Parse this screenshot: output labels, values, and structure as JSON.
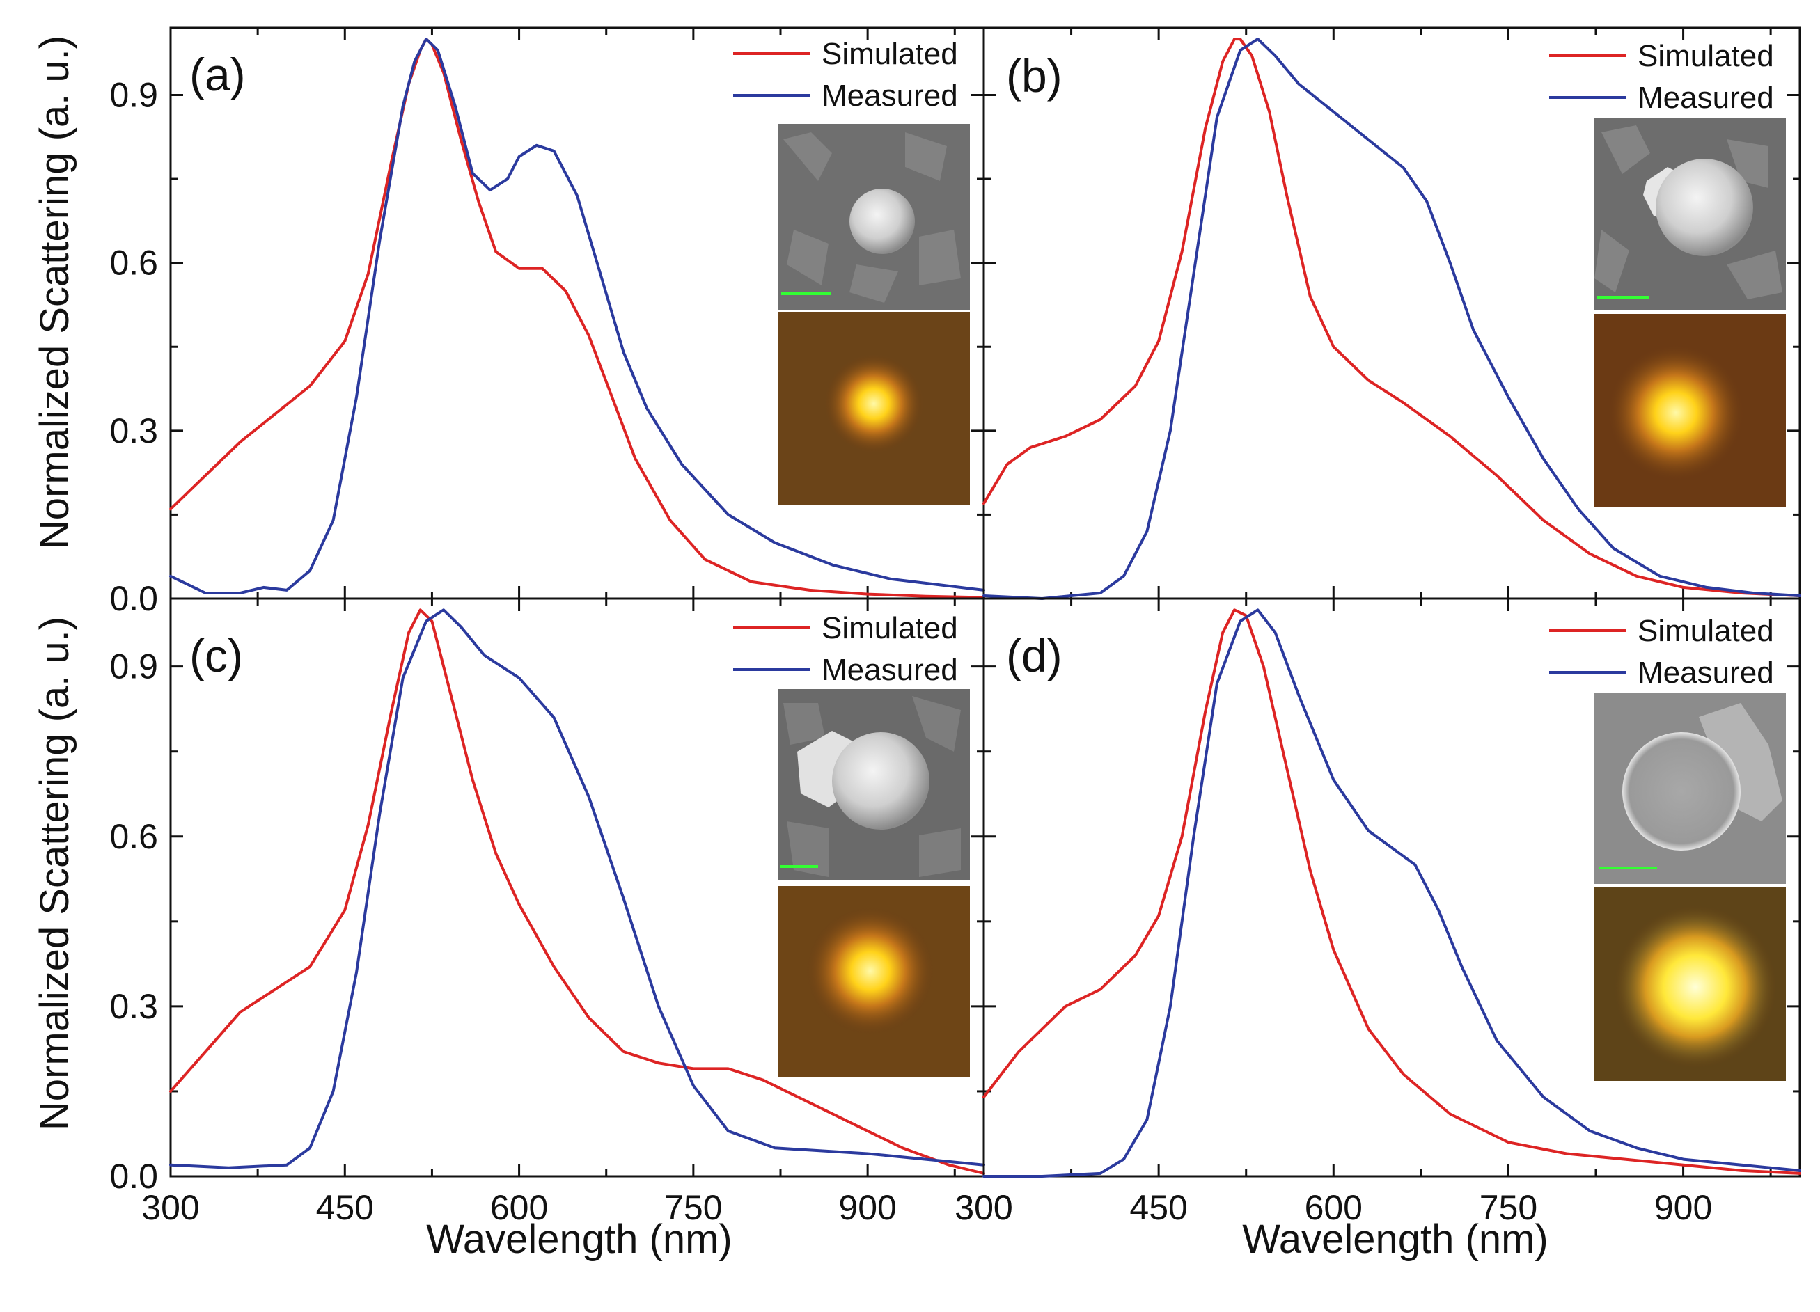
{
  "figure": {
    "ylabel": "Normalized Scattering (a. u.)",
    "xlabel": "Wavelength (nm)",
    "legend": {
      "simulated": "Simulated",
      "measured": "Measured"
    },
    "colors": {
      "simulated": "#dd2424",
      "measured": "#2b3a9e",
      "axis": "#111111"
    }
  },
  "chart_data": [
    {
      "type": "line",
      "panel": "(a)",
      "xlim": [
        300,
        1000
      ],
      "ylim": [
        0,
        1.02
      ],
      "xticks": [
        300,
        450,
        600,
        750,
        900
      ],
      "yticks": [
        0.0,
        0.3,
        0.6,
        0.9
      ],
      "ytick_labels": [
        "0.0",
        "0.3",
        "0.6",
        "0.9"
      ],
      "xlabel": "",
      "ylabel": "Normalized Scattering (a. u.)",
      "series": [
        {
          "name": "Simulated",
          "color": "#dd2424",
          "x": [
            300,
            330,
            360,
            390,
            420,
            450,
            470,
            490,
            505,
            515,
            520,
            525,
            535,
            550,
            565,
            580,
            600,
            620,
            640,
            660,
            680,
            700,
            730,
            760,
            800,
            850,
            900,
            950,
            1000
          ],
          "y": [
            0.16,
            0.22,
            0.28,
            0.33,
            0.38,
            0.46,
            0.58,
            0.78,
            0.92,
            0.98,
            1.0,
            0.99,
            0.94,
            0.82,
            0.71,
            0.62,
            0.59,
            0.59,
            0.55,
            0.47,
            0.36,
            0.25,
            0.14,
            0.07,
            0.03,
            0.015,
            0.008,
            0.004,
            0.002
          ]
        },
        {
          "name": "Measured",
          "color": "#2b3a9e",
          "x": [
            300,
            330,
            360,
            380,
            400,
            420,
            440,
            460,
            480,
            500,
            510,
            520,
            530,
            545,
            560,
            575,
            590,
            600,
            615,
            630,
            650,
            670,
            690,
            710,
            740,
            780,
            820,
            870,
            920,
            960,
            1000
          ],
          "y": [
            0.04,
            0.01,
            0.01,
            0.02,
            0.015,
            0.05,
            0.14,
            0.36,
            0.64,
            0.88,
            0.96,
            1.0,
            0.98,
            0.88,
            0.76,
            0.73,
            0.75,
            0.79,
            0.81,
            0.8,
            0.72,
            0.58,
            0.44,
            0.34,
            0.24,
            0.15,
            0.1,
            0.06,
            0.035,
            0.025,
            0.015
          ]
        }
      ]
    },
    {
      "type": "line",
      "panel": "(b)",
      "xlim": [
        300,
        1000
      ],
      "ylim": [
        0,
        1.02
      ],
      "xticks": [
        300,
        450,
        600,
        750,
        900
      ],
      "yticks": [
        0.0,
        0.3,
        0.6,
        0.9
      ],
      "xlabel": "",
      "ylabel": "",
      "series": [
        {
          "name": "Simulated",
          "color": "#dd2424",
          "x": [
            300,
            320,
            340,
            370,
            400,
            430,
            450,
            470,
            490,
            505,
            515,
            520,
            530,
            545,
            560,
            580,
            600,
            630,
            660,
            700,
            740,
            780,
            820,
            860,
            900,
            950,
            1000
          ],
          "y": [
            0.17,
            0.24,
            0.27,
            0.29,
            0.32,
            0.38,
            0.46,
            0.62,
            0.84,
            0.96,
            1.0,
            1.0,
            0.97,
            0.87,
            0.72,
            0.54,
            0.45,
            0.39,
            0.35,
            0.29,
            0.22,
            0.14,
            0.08,
            0.04,
            0.02,
            0.01,
            0.005
          ]
        },
        {
          "name": "Measured",
          "color": "#2b3a9e",
          "x": [
            300,
            350,
            400,
            420,
            440,
            460,
            480,
            500,
            520,
            535,
            550,
            570,
            600,
            630,
            660,
            680,
            700,
            720,
            750,
            780,
            810,
            840,
            880,
            920,
            960,
            1000
          ],
          "y": [
            0.005,
            0.0,
            0.01,
            0.04,
            0.12,
            0.3,
            0.58,
            0.86,
            0.98,
            1.0,
            0.97,
            0.92,
            0.87,
            0.82,
            0.77,
            0.71,
            0.6,
            0.48,
            0.36,
            0.25,
            0.16,
            0.09,
            0.04,
            0.02,
            0.01,
            0.005
          ]
        }
      ]
    },
    {
      "type": "line",
      "panel": "(c)",
      "xlim": [
        300,
        1000
      ],
      "ylim": [
        0,
        1.02
      ],
      "xticks": [
        300,
        450,
        600,
        750,
        900
      ],
      "yticks": [
        0.0,
        0.3,
        0.6,
        0.9
      ],
      "xlabel": "Wavelength (nm)",
      "ylabel": "Normalized Scattering (a. u.)",
      "series": [
        {
          "name": "Simulated",
          "color": "#dd2424",
          "x": [
            300,
            330,
            360,
            390,
            420,
            450,
            470,
            490,
            505,
            515,
            525,
            540,
            560,
            580,
            600,
            630,
            660,
            690,
            720,
            750,
            780,
            810,
            850,
            890,
            930,
            970,
            1000
          ],
          "y": [
            0.15,
            0.22,
            0.29,
            0.33,
            0.37,
            0.47,
            0.62,
            0.82,
            0.96,
            1.0,
            0.98,
            0.86,
            0.7,
            0.57,
            0.48,
            0.37,
            0.28,
            0.22,
            0.2,
            0.19,
            0.19,
            0.17,
            0.13,
            0.09,
            0.05,
            0.02,
            0.005
          ]
        },
        {
          "name": "Measured",
          "color": "#2b3a9e",
          "x": [
            300,
            350,
            400,
            420,
            440,
            460,
            480,
            500,
            520,
            535,
            550,
            570,
            600,
            630,
            660,
            690,
            720,
            750,
            780,
            820,
            860,
            900,
            950,
            1000
          ],
          "y": [
            0.02,
            0.015,
            0.02,
            0.05,
            0.15,
            0.36,
            0.64,
            0.88,
            0.98,
            1.0,
            0.97,
            0.92,
            0.88,
            0.81,
            0.67,
            0.49,
            0.3,
            0.16,
            0.08,
            0.05,
            0.045,
            0.04,
            0.03,
            0.02
          ]
        }
      ]
    },
    {
      "type": "line",
      "panel": "(d)",
      "xlim": [
        300,
        1000
      ],
      "ylim": [
        0,
        1.02
      ],
      "xticks": [
        300,
        450,
        600,
        750,
        900
      ],
      "yticks": [
        0.0,
        0.3,
        0.6,
        0.9
      ],
      "xlabel": "Wavelength (nm)",
      "ylabel": "",
      "series": [
        {
          "name": "Simulated",
          "color": "#dd2424",
          "x": [
            300,
            330,
            370,
            400,
            430,
            450,
            470,
            490,
            505,
            515,
            525,
            540,
            560,
            580,
            600,
            630,
            660,
            700,
            750,
            800,
            850,
            900,
            950,
            1000
          ],
          "y": [
            0.14,
            0.22,
            0.3,
            0.33,
            0.39,
            0.46,
            0.6,
            0.82,
            0.96,
            1.0,
            0.99,
            0.9,
            0.72,
            0.54,
            0.4,
            0.26,
            0.18,
            0.11,
            0.06,
            0.04,
            0.03,
            0.02,
            0.01,
            0.005
          ]
        },
        {
          "name": "Measured",
          "color": "#2b3a9e",
          "x": [
            300,
            350,
            400,
            420,
            440,
            460,
            480,
            500,
            520,
            535,
            550,
            570,
            600,
            630,
            650,
            670,
            690,
            710,
            740,
            780,
            820,
            860,
            900,
            950,
            1000
          ],
          "y": [
            0.0,
            0.0,
            0.005,
            0.03,
            0.1,
            0.3,
            0.6,
            0.87,
            0.98,
            1.0,
            0.96,
            0.85,
            0.7,
            0.61,
            0.58,
            0.55,
            0.47,
            0.37,
            0.24,
            0.14,
            0.08,
            0.05,
            0.03,
            0.02,
            0.01
          ]
        }
      ]
    }
  ]
}
